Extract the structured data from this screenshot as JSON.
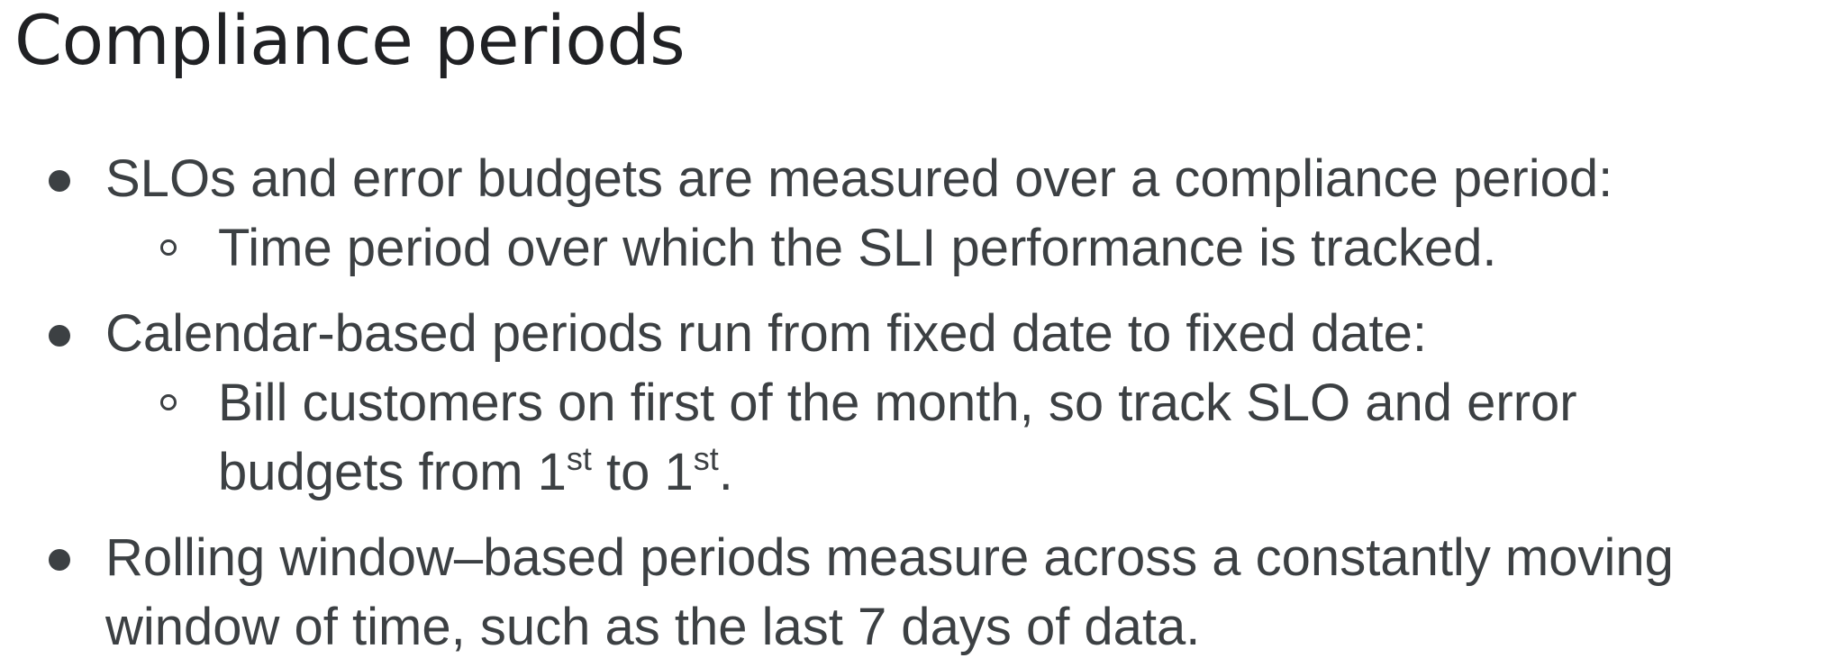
{
  "title": "Compliance periods",
  "bullets": [
    {
      "line1": "SLOs and error budgets are measured over a compliance period:",
      "sub": [
        {
          "line1": "Time period over which the SLI performance is tracked."
        }
      ]
    },
    {
      "line1": "Calendar-based periods run from fixed date to fixed date:",
      "sub": [
        {
          "line1": "Bill customers on first of the month, so track SLO and error",
          "line2_prefix": "budgets from 1",
          "sup1": "st",
          "line2_mid": " to 1",
          "sup2": "st",
          "line2_suffix": "."
        }
      ]
    },
    {
      "line1": "Rolling window–based periods measure across a constantly moving",
      "line2": "window of time, such as the last 7 days of data."
    }
  ]
}
